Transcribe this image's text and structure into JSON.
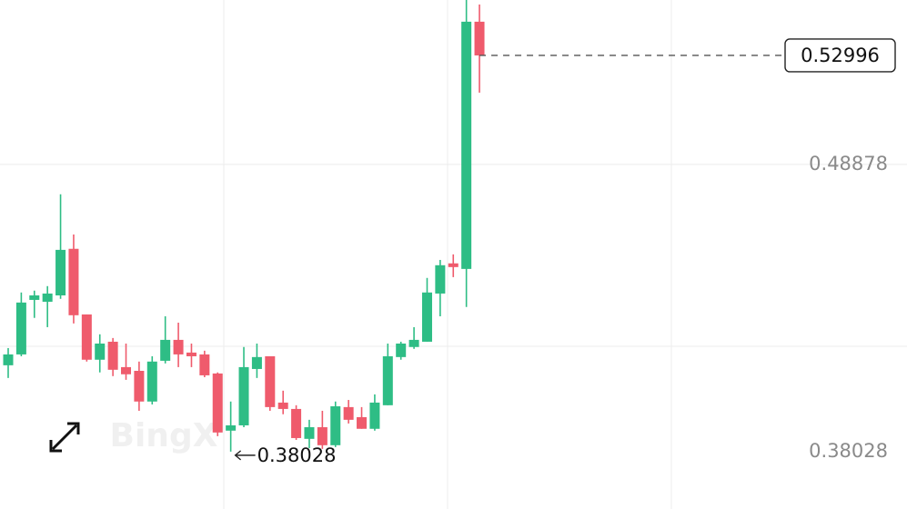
{
  "chart_data": {
    "type": "candlestick",
    "watermark": "BingX",
    "up_color": "#2ebd85",
    "down_color": "#ef5b6c",
    "ylim": [
      0.3586,
      0.5509
    ],
    "yticks": [
      0.48878,
      0.38028
    ],
    "last_price": 0.52996,
    "low_annotation": 0.38028,
    "low_index": 17,
    "open": [
      0.4129,
      0.417,
      0.4376,
      0.4369,
      0.4393,
      0.4569,
      0.4321,
      0.415,
      0.4218,
      0.4122,
      0.4108,
      0.3992,
      0.4146,
      0.4225,
      0.4177,
      0.417,
      0.4098,
      0.3882,
      0.3902,
      0.4115,
      0.4163,
      0.3988,
      0.3964,
      0.3851,
      0.3895,
      0.3827,
      0.3971,
      0.3933,
      0.3889,
      0.3978,
      0.416,
      0.4198,
      0.4218,
      0.44,
      0.4514,
      0.4493,
      0.5427
    ],
    "high": [
      0.4194,
      0.4404,
      0.4411,
      0.4428,
      0.4775,
      0.4623,
      0.4321,
      0.4246,
      0.4232,
      0.4211,
      0.4143,
      0.4163,
      0.4314,
      0.429,
      0.4211,
      0.4184,
      0.4102,
      0.3992,
      0.4198,
      0.4211,
      0.4163,
      0.4033,
      0.3978,
      0.3923,
      0.3957,
      0.3992,
      0.3998,
      0.3971,
      0.4019,
      0.4211,
      0.4218,
      0.4273,
      0.4459,
      0.4527,
      0.4548,
      0.5509,
      0.5492
    ],
    "low": [
      0.4081,
      0.4163,
      0.4308,
      0.4273,
      0.438,
      0.4287,
      0.4143,
      0.4102,
      0.4088,
      0.4074,
      0.3957,
      0.3981,
      0.4136,
      0.4122,
      0.4122,
      0.4084,
      0.3861,
      0.38028,
      0.3895,
      0.4081,
      0.3957,
      0.3944,
      0.3847,
      0.3816,
      0.3813,
      0.382,
      0.3909,
      0.3889,
      0.3882,
      0.3978,
      0.415,
      0.4191,
      0.4218,
      0.4314,
      0.4462,
      0.4349,
      0.5159
    ],
    "close": [
      0.417,
      0.4366,
      0.4393,
      0.44,
      0.4565,
      0.4318,
      0.415,
      0.4211,
      0.4112,
      0.4095,
      0.3992,
      0.4143,
      0.4225,
      0.417,
      0.4163,
      0.4091,
      0.3875,
      0.3902,
      0.4122,
      0.416,
      0.3971,
      0.3964,
      0.3854,
      0.3895,
      0.3827,
      0.3974,
      0.3923,
      0.3889,
      0.3988,
      0.4163,
      0.4211,
      0.4225,
      0.4404,
      0.4507,
      0.45,
      0.5427,
      0.52996
    ]
  }
}
